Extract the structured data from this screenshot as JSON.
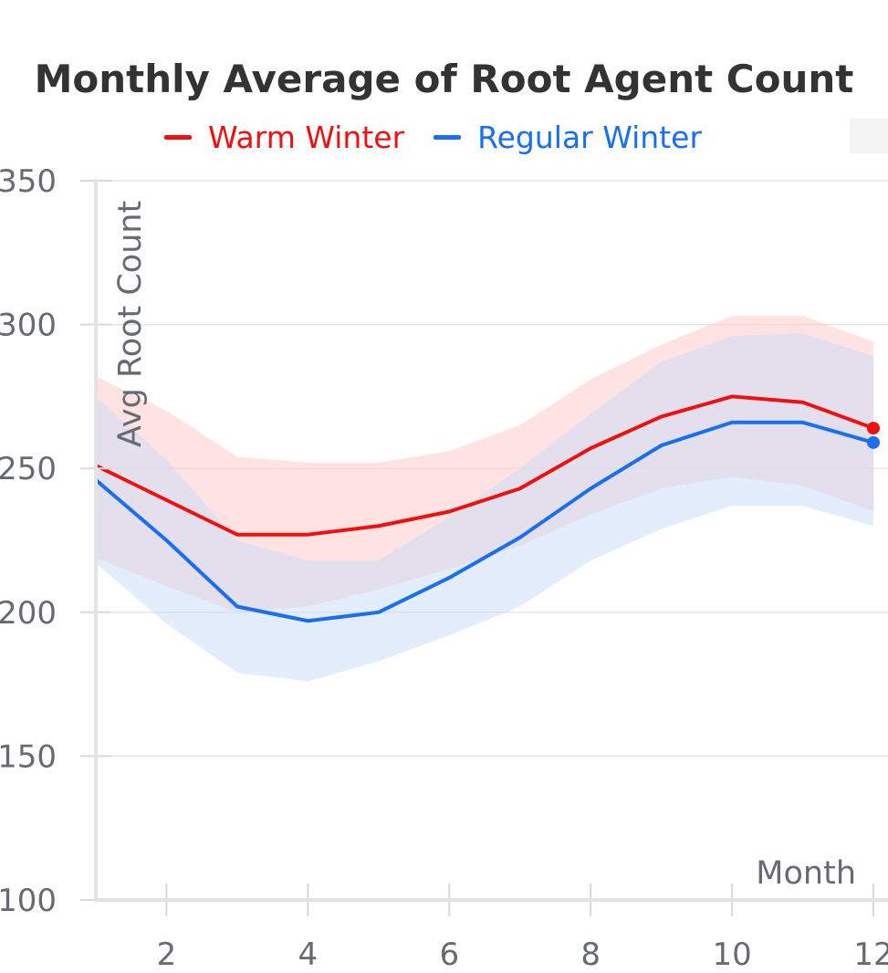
{
  "chart_data": {
    "type": "line",
    "title": "Monthly Average of Root Agent Count",
    "xlabel": "Month",
    "ylabel": "Avg Root Count",
    "xlim": [
      1,
      12
    ],
    "ylim": [
      100,
      350
    ],
    "x_ticks": [
      2,
      4,
      6,
      8,
      10,
      12
    ],
    "y_ticks": [
      100,
      150,
      200,
      250,
      300,
      350
    ],
    "grid": true,
    "legend_position": "top",
    "x": [
      1,
      2,
      3,
      4,
      5,
      6,
      7,
      8,
      9,
      10,
      11,
      12
    ],
    "series": [
      {
        "name": "Warm Winter",
        "color": "#ee1111",
        "band_color": "#ffcccc",
        "values": [
          251,
          239,
          227,
          227,
          230,
          235,
          243,
          257,
          268,
          275,
          273,
          264
        ],
        "upper": [
          282,
          270,
          254,
          252,
          252,
          256,
          265,
          281,
          293,
          303,
          303,
          294
        ],
        "lower": [
          219,
          209,
          200,
          202,
          208,
          215,
          223,
          234,
          243,
          247,
          244,
          235
        ]
      },
      {
        "name": "Regular Winter",
        "color": "#1a6ef0",
        "band_color": "#c8dbf8",
        "values": [
          246,
          225,
          202,
          197,
          200,
          212,
          226,
          243,
          258,
          266,
          266,
          259
        ],
        "upper": [
          275,
          253,
          225,
          218,
          218,
          233,
          250,
          269,
          287,
          296,
          297,
          289
        ],
        "lower": [
          217,
          196,
          179,
          176,
          183,
          192,
          202,
          218,
          229,
          237,
          237,
          230
        ]
      }
    ]
  }
}
